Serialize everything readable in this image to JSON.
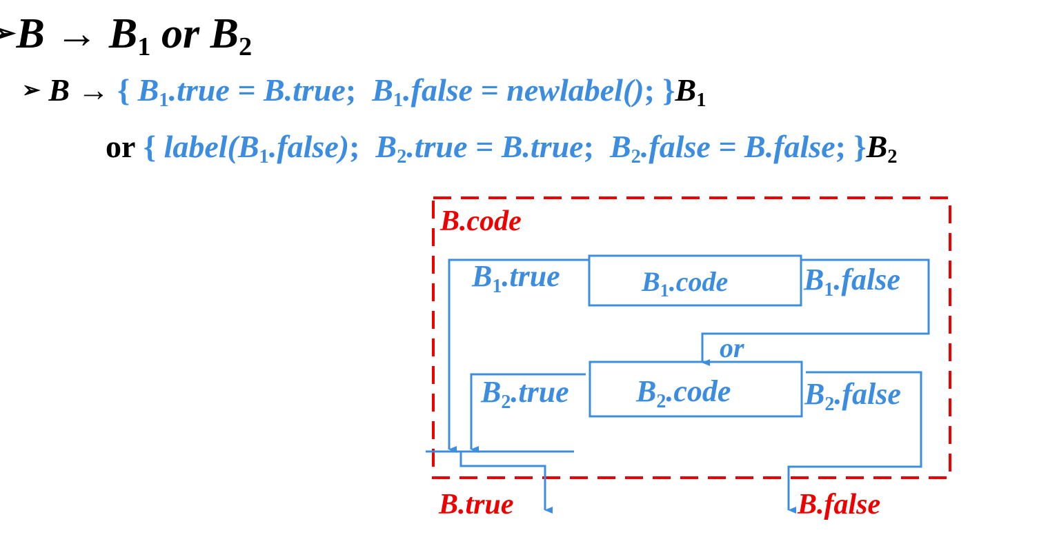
{
  "heading": {
    "bullet": "➢",
    "lhs": "B",
    "arrow": "→",
    "b": "B",
    "sub1": "1",
    "or": "or",
    "sub2": "2"
  },
  "rule": {
    "bullet": "➢",
    "lhs": "B",
    "arrow": "→",
    "line1": {
      "open": "{",
      "b": "B",
      "sub": "1",
      "true_part": ".true = B.true",
      "sep": ";",
      "false_part": ".false = newlabel()",
      "close": "; }",
      "sym": "B",
      "sym_sub": "1"
    },
    "line2": {
      "or": "or",
      "open": "{",
      "label_pre": "label(",
      "b": "B",
      "sub1": "1",
      "label_post": ".false)",
      "sep": ";",
      "sub2": "2",
      "true_part": ".true = B.true",
      "false_part": ".false = B.false",
      "close": "; }",
      "sym": "B",
      "sym_sub": "2"
    }
  },
  "diagram": {
    "outer_label": "B.code",
    "b1_code": {
      "b": "B",
      "sub": "1",
      "rest": ".code"
    },
    "b1_true": {
      "b": "B",
      "sub": "1",
      "rest": ".true"
    },
    "b1_false": {
      "b": "B",
      "sub": "1",
      "rest": ".false"
    },
    "or_label": "or",
    "b2_code": {
      "b": "B",
      "sub": "2",
      "rest": ".code"
    },
    "b2_true": {
      "b": "B",
      "sub": "2",
      "rest": ".true"
    },
    "b2_false": {
      "b": "B",
      "sub": "2",
      "rest": ".false"
    },
    "out_true": "B.true",
    "out_false": "B.false"
  },
  "colors": {
    "black": "#000000",
    "blue": "#3c8ce0",
    "red": "#ee0000"
  }
}
